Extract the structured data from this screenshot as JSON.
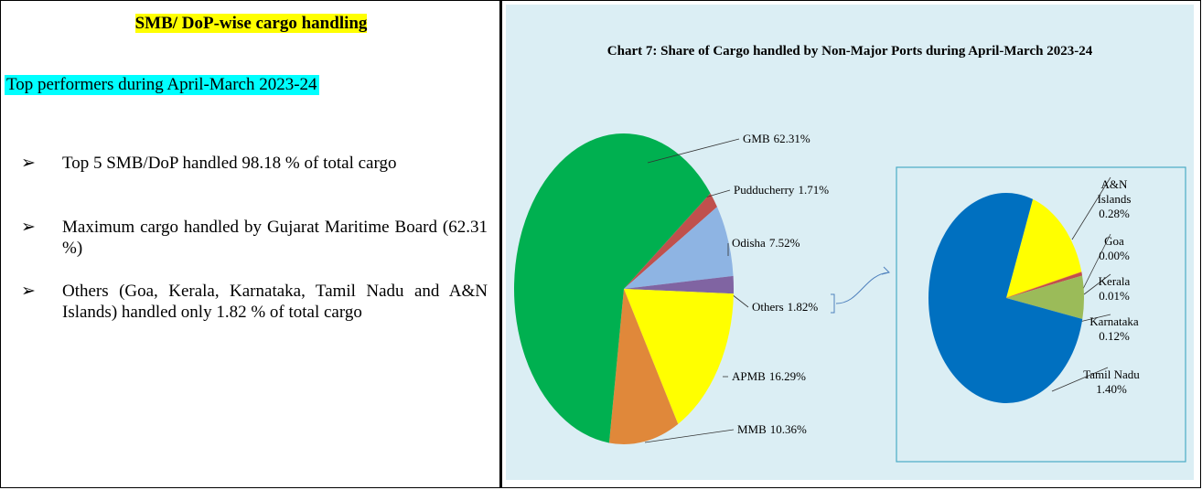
{
  "panel": {
    "heading": "SMB/ DoP-wise cargo handling",
    "subheading": "Top performers during April-March 2023-24",
    "bullets": [
      "Top 5 SMB/DoP handled 98.18 % of total cargo",
      "Maximum cargo handled by Gujarat Maritime Board (62.31 %)",
      "Others (Goa, Kerala, Karnataka, Tamil Nadu and A&N Islands) handled only 1.82 % of total cargo"
    ]
  },
  "chart_data": [
    {
      "type": "pie",
      "title": "Chart 7: Share of Cargo handled by Non-Major Ports during April-March 2023-24",
      "categories": [
        "Pudducherry",
        "Odisha",
        "Others",
        "APMB",
        "MMB",
        "GMB"
      ],
      "values": [
        1.71,
        7.52,
        1.82,
        16.29,
        10.36,
        62.31
      ],
      "value_labels": [
        "1.71%",
        "7.52%",
        "1.82%",
        "16.29%",
        "10.36%",
        "62.31%"
      ],
      "colors": [
        "#c0504d",
        "#8eb4e3",
        "#8064a2",
        "#ffff00",
        "#e0883a",
        "#00b050"
      ]
    },
    {
      "type": "pie",
      "categories": [
        "A&N Islands",
        "Goa",
        "Kerala",
        "Karnataka",
        "Tamil Nadu"
      ],
      "values": [
        0.28,
        0.0,
        0.01,
        0.12,
        1.4
      ],
      "value_labels": [
        "0.28%",
        "0.00%",
        "0.01%",
        "0.12%",
        "1.40%"
      ],
      "colors": [
        "#ffff00",
        "#f79646",
        "#c0504d",
        "#9bbb59",
        "#0070c0"
      ]
    }
  ]
}
